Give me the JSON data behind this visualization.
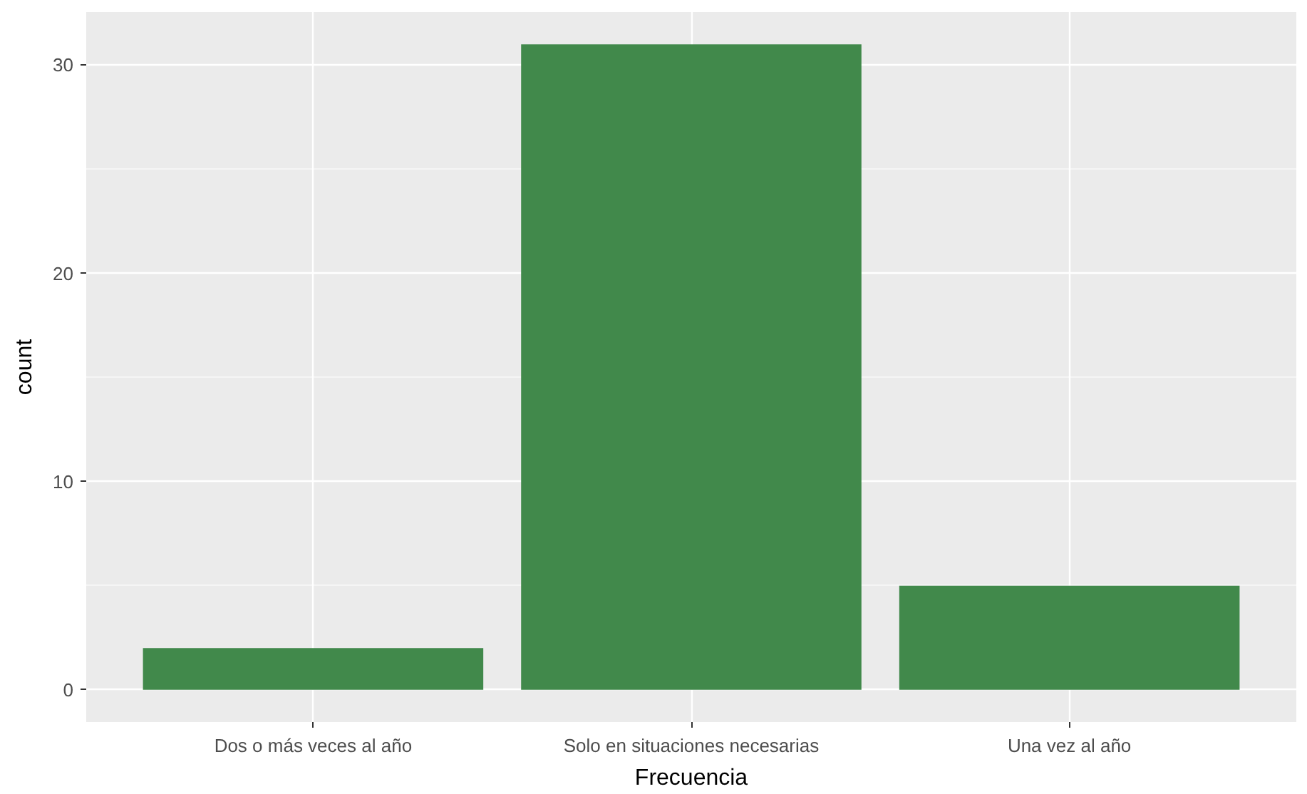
{
  "chart_data": {
    "type": "bar",
    "xlabel": "Frecuencia",
    "ylabel": "count",
    "categories": [
      "Dos o más veces al año",
      "Solo en situaciones necesarias",
      "Una vez al año"
    ],
    "values": [
      2,
      31,
      5
    ],
    "color": "#41894b",
    "ylim": [
      -1.55,
      32.55
    ],
    "yticks": [
      0,
      10,
      20,
      30
    ],
    "grid": true
  }
}
